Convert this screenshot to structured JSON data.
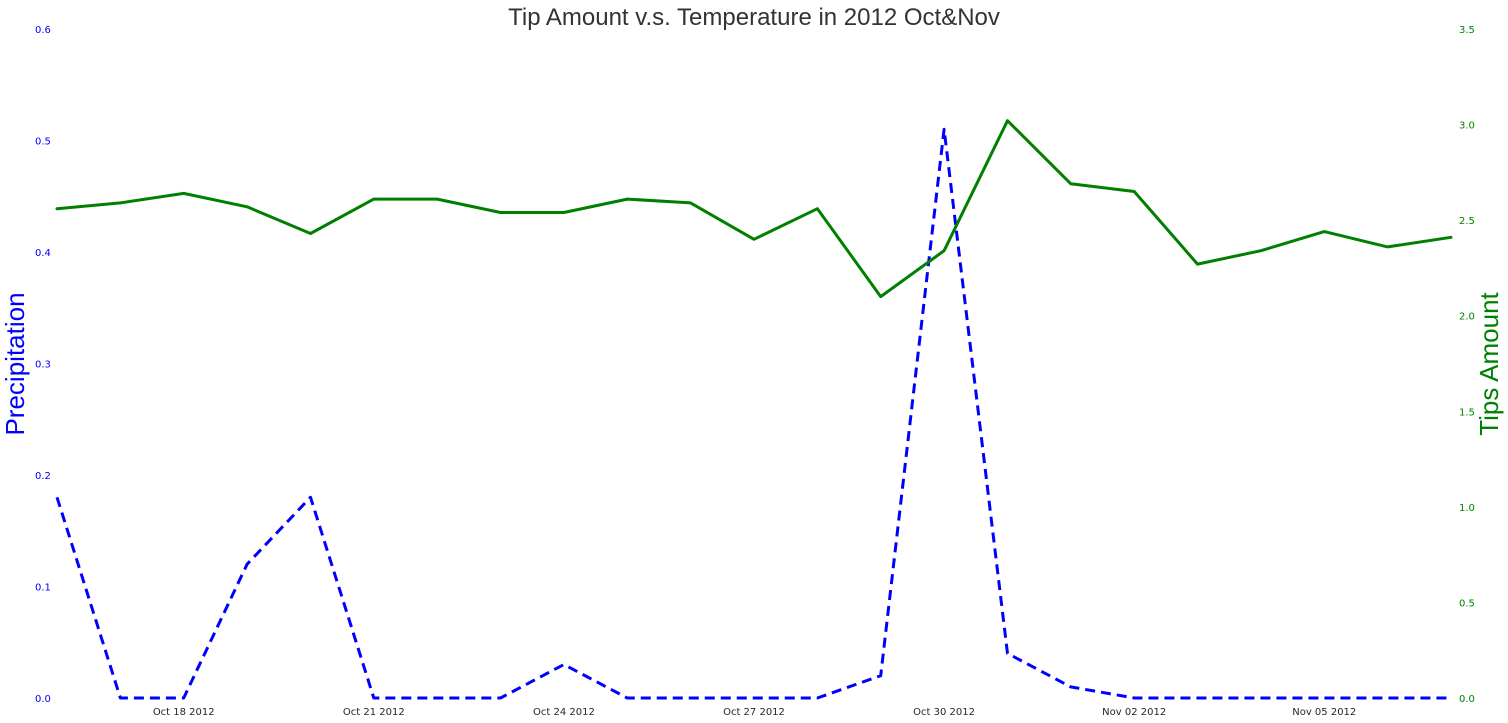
{
  "chart_data": {
    "type": "line",
    "title": "Tip Amount v.s. Temperature in 2012 Oct&Nov",
    "xlabel": "",
    "x": [
      "2012-10-16",
      "2012-10-17",
      "2012-10-18",
      "2012-10-19",
      "2012-10-20",
      "2012-10-21",
      "2012-10-22",
      "2012-10-23",
      "2012-10-24",
      "2012-10-25",
      "2012-10-26",
      "2012-10-27",
      "2012-10-28",
      "2012-10-29",
      "2012-10-30",
      "2012-10-31",
      "2012-11-01",
      "2012-11-02",
      "2012-11-03",
      "2012-11-04",
      "2012-11-05",
      "2012-11-06",
      "2012-11-07"
    ],
    "x_tick_dates": [
      "2012-10-18",
      "2012-10-21",
      "2012-10-24",
      "2012-10-27",
      "2012-10-30",
      "2012-11-02",
      "2012-11-05"
    ],
    "x_tick_labels": [
      "Oct 18 2012",
      "Oct 21 2012",
      "Oct 24 2012",
      "Oct 27 2012",
      "Oct 30 2012",
      "Nov 02 2012",
      "Nov 05 2012"
    ],
    "grid": false,
    "left_axis": {
      "label": "Precipitation",
      "color": "#0000ff",
      "ylim": [
        0,
        0.6
      ],
      "ticks": [
        "0.0",
        "0.1",
        "0.2",
        "0.3",
        "0.4",
        "0.5",
        "0.6"
      ]
    },
    "right_axis": {
      "label": "Tips Amount",
      "color": "#008000",
      "ylim": [
        0,
        3.5
      ],
      "ticks": [
        "0.0",
        "0.5",
        "1.0",
        "1.5",
        "2.0",
        "2.5",
        "3.0",
        "3.5"
      ]
    },
    "series": [
      {
        "axis": "left",
        "color": "#0000ff",
        "style": "dashed",
        "values": [
          0.18,
          0.0,
          0.0,
          0.12,
          0.18,
          0.0,
          0.0,
          0.0,
          0.03,
          0.0,
          0.0,
          0.0,
          0.0,
          0.02,
          0.51,
          0.04,
          0.01,
          0.0,
          0.0,
          0.0,
          0.0,
          0.0,
          0.0
        ]
      },
      {
        "axis": "right",
        "color": "#008000",
        "style": "solid",
        "values": [
          2.56,
          2.59,
          2.64,
          2.57,
          2.43,
          2.61,
          2.61,
          2.54,
          2.54,
          2.61,
          2.59,
          2.4,
          2.56,
          2.1,
          2.34,
          3.02,
          2.69,
          2.65,
          2.27,
          2.34,
          2.44,
          2.36,
          2.41
        ]
      }
    ]
  }
}
